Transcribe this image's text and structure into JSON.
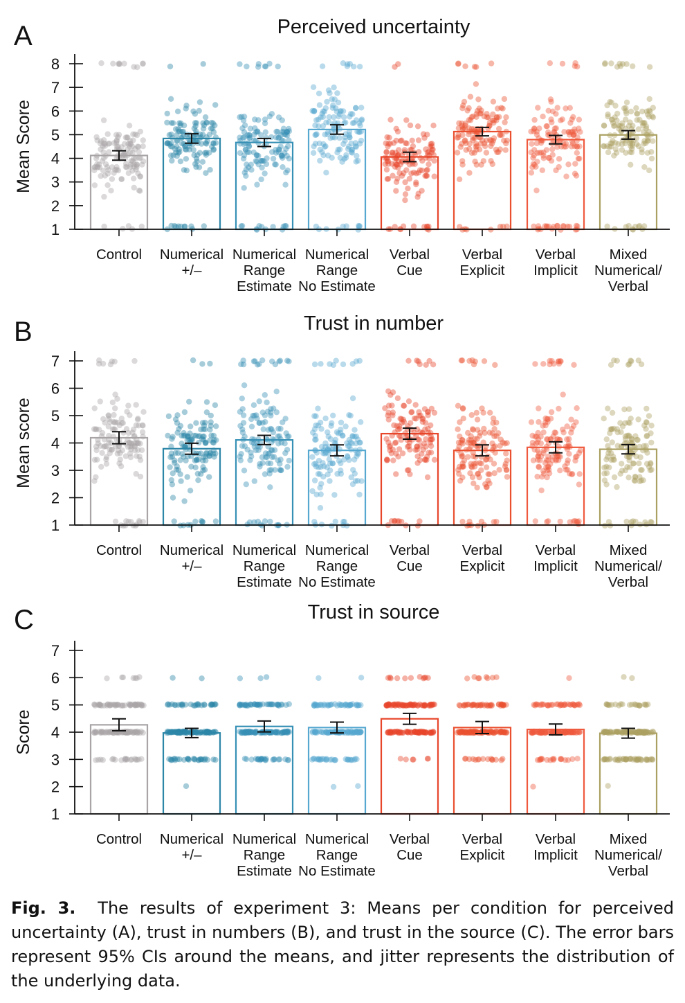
{
  "categories": [
    "Control",
    "Numerical +/–",
    "Numerical Range Estimate",
    "Numerical Range No Estimate",
    "Verbal Cue",
    "Verbal Explicit",
    "Verbal Implicit",
    "Mixed Numerical/ Verbal"
  ],
  "category_label_lines": [
    [
      "Control"
    ],
    [
      "Numerical",
      "+/–"
    ],
    [
      "Numerical",
      "Range",
      "Estimate"
    ],
    [
      "Numerical",
      "Range",
      "No Estimate"
    ],
    [
      "Verbal",
      "Cue"
    ],
    [
      "Verbal",
      "Explicit"
    ],
    [
      "Verbal",
      "Implicit"
    ],
    [
      "Mixed",
      "Numerical/",
      "Verbal"
    ]
  ],
  "colors": [
    "#a9a5a7",
    "#2c86a8",
    "#3690b5",
    "#56a8d0",
    "#e8462a",
    "#ea5030",
    "#ef5a3e",
    "#aba061"
  ],
  "chart_data": [
    {
      "type": "bar",
      "panel": "A",
      "title": "Perceived uncertainty",
      "ylabel": "Mean Score",
      "xlabel": "",
      "ylim": [
        1,
        8
      ],
      "yticks": [
        1,
        2,
        3,
        4,
        5,
        6,
        7,
        8
      ],
      "jitter": "continuous",
      "means": [
        4.12,
        4.84,
        4.67,
        5.22,
        4.06,
        5.13,
        4.79,
        4.99
      ],
      "ci_half": [
        0.2,
        0.2,
        0.17,
        0.2,
        0.2,
        0.18,
        0.18,
        0.18
      ]
    },
    {
      "type": "bar",
      "panel": "B",
      "title": "Trust in number",
      "ylabel": "Mean score",
      "xlabel": "",
      "ylim": [
        1,
        7
      ],
      "yticks": [
        1,
        2,
        3,
        4,
        5,
        6,
        7
      ],
      "jitter": "continuous",
      "means": [
        4.19,
        3.79,
        4.11,
        3.73,
        4.34,
        3.73,
        3.84,
        3.77
      ],
      "ci_half": [
        0.22,
        0.2,
        0.17,
        0.2,
        0.2,
        0.2,
        0.2,
        0.17
      ]
    },
    {
      "type": "bar",
      "panel": "C",
      "title": "Trust in source",
      "ylabel": "Score",
      "xlabel": "",
      "ylim": [
        1,
        7
      ],
      "yticks": [
        1,
        2,
        3,
        4,
        5,
        6,
        7
      ],
      "jitter": "discrete",
      "means": [
        4.27,
        3.97,
        4.21,
        4.17,
        4.49,
        4.17,
        4.1,
        3.96
      ],
      "ci_half": [
        0.22,
        0.17,
        0.2,
        0.2,
        0.2,
        0.22,
        0.2,
        0.18
      ]
    }
  ],
  "caption": {
    "label": "Fig. 3.",
    "text": "The results of experiment 3: Means per condition for perceived uncertainty (A), trust in numbers (B), and trust in the source (C). The error bars represent 95% CIs around the means, and jitter represents the distribution of the underlying data."
  }
}
